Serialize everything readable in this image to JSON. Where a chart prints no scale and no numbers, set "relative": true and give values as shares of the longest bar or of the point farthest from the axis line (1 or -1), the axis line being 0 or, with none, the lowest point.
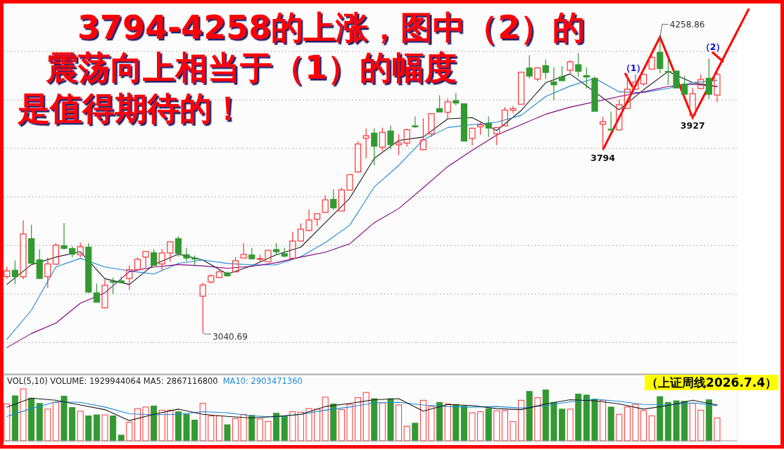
{
  "chart_data": [
    {
      "type": "candlestick",
      "title": "3794-4258的上涨，图中（2）的震荡向上相当于（1）的幅度是值得期待的！",
      "categories": [
        null,
        null,
        null,
        null,
        null,
        null,
        null,
        null,
        null,
        null,
        null,
        null,
        null,
        null,
        null,
        null,
        null,
        null,
        null,
        null,
        null,
        null,
        null,
        null,
        null,
        null,
        null,
        null,
        null,
        null,
        null,
        null,
        null,
        null,
        null,
        null,
        null,
        null,
        null,
        null,
        null,
        null,
        null,
        null,
        null,
        null,
        null,
        null,
        null,
        null,
        null,
        null,
        null,
        null,
        null,
        null,
        null,
        null,
        null,
        null,
        null,
        null,
        null,
        null,
        null,
        null,
        null,
        null,
        null,
        null,
        null,
        null,
        null,
        null,
        null,
        null,
        null,
        null,
        null,
        null,
        null,
        null,
        null,
        null,
        null,
        null,
        null,
        null
      ],
      "ohlc": [
        [
          3272,
          3312,
          3263,
          3295
        ],
        [
          3298,
          3338,
          3241,
          3271
        ],
        [
          3271,
          3503,
          3261,
          3447
        ],
        [
          3428,
          3485,
          3325,
          3327
        ],
        [
          3341,
          3384,
          3262,
          3264
        ],
        [
          3271,
          3350,
          3225,
          3324
        ],
        [
          3323,
          3410,
          3321,
          3401
        ],
        [
          3399,
          3492,
          3383,
          3388
        ],
        [
          3387,
          3398,
          3350,
          3364
        ],
        [
          3362,
          3412,
          3350,
          3395
        ],
        [
          3393,
          3410,
          3203,
          3208
        ],
        [
          3205,
          3243,
          3165,
          3166
        ],
        [
          3143,
          3260,
          3141,
          3236
        ],
        [
          3251,
          3268,
          3200,
          3249
        ],
        [
          3254,
          3272,
          3246,
          3247
        ],
        [
          3264,
          3318,
          3218,
          3300
        ],
        [
          3301,
          3352,
          3300,
          3343
        ],
        [
          3352,
          3376,
          3309,
          3375
        ],
        [
          3370,
          3384,
          3317,
          3318
        ],
        [
          3324,
          3384,
          3297,
          3369
        ],
        [
          3369,
          3416,
          3333,
          3415
        ],
        [
          3428,
          3437,
          3354,
          3367
        ],
        [
          3362,
          3391,
          3335,
          3348
        ],
        [
          3348,
          3358,
          3315,
          3344
        ],
        [
          3191,
          3246,
          3040.69,
          3237
        ],
        [
          3249,
          3281,
          3243,
          3275
        ],
        [
          3268,
          3304,
          3267,
          3291
        ],
        [
          3287,
          3292,
          3273,
          3275
        ],
        [
          3291,
          3352,
          3290,
          3337
        ],
        [
          3348,
          3410,
          3348,
          3363
        ],
        [
          3361,
          3390,
          3344,
          3345
        ],
        [
          3344,
          3362,
          3330,
          3346
        ],
        [
          3333,
          3380,
          3333,
          3380
        ],
        [
          3383,
          3410,
          3359,
          3374
        ],
        [
          3366,
          3390,
          3350,
          3356
        ],
        [
          3347,
          3456,
          3346,
          3418
        ],
        [
          3418,
          3491,
          3417,
          3467
        ],
        [
          3462,
          3549,
          3459,
          3505
        ],
        [
          3508,
          3532,
          3480,
          3531
        ],
        [
          3536,
          3607,
          3535,
          3588
        ],
        [
          3590,
          3632,
          3547,
          3555
        ],
        [
          3542,
          3638,
          3541,
          3629
        ],
        [
          3628,
          3692,
          3628,
          3692
        ],
        [
          3703,
          3829,
          3700,
          3818
        ],
        [
          3842,
          3882,
          3759,
          3852
        ],
        [
          3863,
          3882,
          3730,
          3809
        ],
        [
          3805,
          3886,
          3789,
          3866
        ],
        [
          3872,
          3895,
          3798,
          3815
        ],
        [
          3815,
          3858,
          3772,
          3823
        ],
        [
          3822,
          3881,
          3807,
          3877
        ],
        [
          3893,
          3932,
          3884,
          3889
        ],
        [
          3795,
          3924,
          3793,
          3835
        ],
        [
          3860,
          3944,
          3847,
          3943
        ],
        [
          3964,
          4019,
          3949,
          3950
        ],
        [
          3949,
          4005,
          3920,
          3992
        ],
        [
          3997,
          4028,
          3977,
          3987
        ],
        [
          3984,
          3984,
          3830,
          3830
        ],
        [
          3841,
          3886,
          3812,
          3883
        ],
        [
          3889,
          3905,
          3857,
          3897
        ],
        [
          3903,
          3932,
          3847,
          3884
        ],
        [
          3860,
          3887,
          3813,
          3886
        ],
        [
          3893,
          3970,
          3892,
          3958
        ],
        [
          3957,
          3975,
          3946,
          3964
        ],
        [
          3982,
          4115,
          3981,
          4114
        ],
        [
          4131,
          4184,
          4088,
          4098
        ],
        [
          4086,
          4135,
          4076,
          4132
        ],
        [
          4141,
          4166,
          4086,
          4113
        ],
        [
          4074,
          4134,
          3999,
          4062
        ],
        [
          4095,
          4139,
          4076,
          4079
        ],
        [
          4122,
          4163,
          4110,
          4157
        ],
        [
          4145,
          4193,
          4094,
          4118
        ],
        [
          4100,
          4134,
          4047,
          4094
        ],
        [
          4089,
          4097,
          3952,
          3953
        ],
        [
          3900,
          3930,
          3794,
          3910
        ],
        [
          3879,
          3951,
          3875,
          3876
        ],
        [
          3876,
          4001,
          3875,
          3980
        ],
        [
          3965,
          4107,
          3964,
          4044
        ],
        [
          4044,
          4105,
          4043,
          4073
        ],
        [
          4066,
          4106,
          4059,
          4105
        ],
        [
          4127,
          4201,
          4126,
          4175
        ],
        [
          4196,
          4258.86,
          4110,
          4129
        ],
        [
          4117,
          4167,
          4062,
          4115
        ],
        [
          4119,
          4120,
          4048,
          4049
        ],
        [
          4065,
          4100,
          4022,
          4023
        ],
        [
          3936,
          4049,
          3927,
          4025
        ],
        [
          4047,
          4105,
          4046,
          4084
        ],
        [
          4089,
          4170,
          4004,
          4023
        ],
        [
          4020,
          4132,
          3990,
          4105
        ]
      ],
      "colors": [
        "#ff3333",
        "#339933",
        "#ff3333",
        "#339933",
        "#339933",
        "#ff3333",
        "#ff3333",
        "#339933",
        "#339933",
        "#ff3333",
        "#339933",
        "#339933",
        "#ff3333",
        "#339933",
        "#339933",
        "#ff3333",
        "#ff3333",
        "#ff3333",
        "#339933",
        "#ff3333",
        "#ff3333",
        "#339933",
        "#339933",
        "#339933",
        "#ff3333",
        "#ff3333",
        "#ff3333",
        "#339933",
        "#ff3333",
        "#ff3333",
        "#339933",
        "#ff3333",
        "#ff3333",
        "#339933",
        "#339933",
        "#ff3333",
        "#ff3333",
        "#ff3333",
        "#ff3333",
        "#ff3333",
        "#339933",
        "#ff3333",
        "#ff3333",
        "#ff3333",
        "#ff3333",
        "#339933",
        "#ff3333",
        "#339933",
        "#ff3333",
        "#ff3333",
        "#339933",
        "#ff3333",
        "#ff3333",
        "#339933",
        "#ff3333",
        "#339933",
        "#339933",
        "#ff3333",
        "#ff3333",
        "#339933",
        "#ff3333",
        "#ff3333",
        "#ff3333",
        "#ff3333",
        "#339933",
        "#ff3333",
        "#339933",
        "#339933",
        "#339933",
        "#ff3333",
        "#339933",
        "#339933",
        "#339933",
        "#ff3333",
        "#339933",
        "#ff3333",
        "#ff3333",
        "#ff3333",
        "#ff3333",
        "#ff3333",
        "#339933",
        "#339933",
        "#339933",
        "#339933",
        "#ff3333",
        "#ff3333",
        "#339933",
        "#ff3333"
      ],
      "series": [
        {
          "type": "line",
          "color": "#1a1a1a",
          "values": [
            3240,
            null,
            null,
            3321,
            null,
            null,
            3352,
            null,
            null,
            3374,
            null,
            null,
            3263,
            null,
            null,
            3239,
            null,
            null,
            3321,
            null,
            null,
            3364,
            null,
            null,
            3340,
            null,
            null,
            3282,
            null,
            null,
            3316,
            null,
            null,
            3362,
            null,
            null,
            3393,
            null,
            null,
            3494,
            null,
            null,
            3595,
            null,
            null,
            3759,
            null,
            null,
            3833,
            null,
            null,
            3847,
            null,
            null,
            3922,
            null,
            null,
            3927,
            null,
            null,
            3874,
            null,
            null,
            3956,
            null,
            null,
            4071,
            null,
            null,
            4107,
            null,
            null,
            null,
            null,
            null,
            3959,
            null,
            null,
            4042,
            null,
            null,
            4117,
            null,
            null,
            4071,
            null,
            null,
            4055
          ]
        },
        {
          "type": "line",
          "color": "#1e88d8",
          "values": [
            3013,
            null,
            null,
            3133,
            null,
            null,
            3311,
            null,
            null,
            3347,
            null,
            null,
            3311,
            null,
            null,
            3295,
            null,
            null,
            3282,
            null,
            null,
            3326,
            null,
            null,
            3340,
            null,
            null,
            3326,
            null,
            null,
            3320,
            null,
            null,
            3320,
            null,
            null,
            3354,
            null,
            null,
            3412,
            null,
            null,
            3484,
            null,
            null,
            3641,
            null,
            null,
            3730,
            null,
            null,
            3835,
            null,
            null,
            3886,
            null,
            null,
            3898,
            null,
            null,
            3908,
            null,
            null,
            3936,
            null,
            null,
            4014,
            null,
            null,
            4057,
            null,
            null,
            4089,
            null,
            null,
            4033,
            null,
            null,
            4030,
            null,
            null,
            4047,
            null,
            null,
            4071,
            null,
            null,
            4081
          ]
        },
        {
          "type": "line",
          "color": "#800080",
          "values": [
            2979,
            null,
            null,
            3037,
            null,
            null,
            3080,
            null,
            null,
            3162,
            null,
            null,
            3205,
            null,
            null,
            3292,
            null,
            null,
            3311,
            null,
            null,
            3321,
            null,
            null,
            3316,
            null,
            null,
            3306,
            null,
            null,
            3314,
            null,
            null,
            3329,
            null,
            null,
            3352,
            null,
            null,
            3372,
            null,
            null,
            3407,
            null,
            null,
            3494,
            null,
            null,
            3552,
            null,
            null,
            3638,
            null,
            null,
            3725,
            null,
            null,
            3792,
            null,
            null,
            3855,
            null,
            null,
            3898,
            null,
            null,
            3941,
            null,
            null,
            3970,
            null,
            null,
            null,
            null,
            null,
            4014,
            null,
            null,
            4033,
            null,
            null,
            4055,
            null,
            null,
            4065,
            null,
            null,
            4055
          ]
        }
      ],
      "ylim": [
        2870,
        4400
      ],
      "yticks": [
        {
          "value": 3000,
          "label": null
        },
        {
          "value": 3200,
          "label": null
        },
        {
          "value": 3400,
          "label": null
        },
        {
          "value": 3600,
          "label": null
        },
        {
          "value": 3800,
          "label": null
        },
        {
          "value": 4000,
          "label": null
        },
        {
          "value": 4200,
          "label": null
        }
      ],
      "grid": "y",
      "annotations": [
        "4258.86",
        "3040.69",
        {
          "text": "3794",
          "y": 3794
        },
        {
          "text": "3927",
          "y": 3927
        },
        "（1）",
        "（2）"
      ]
    },
    {
      "type": "bar",
      "relative": true,
      "categories": [
        null,
        null,
        null,
        null,
        null,
        null,
        null,
        null,
        null,
        null,
        null,
        null,
        null,
        null,
        null,
        null,
        null,
        null,
        null,
        null,
        null,
        null,
        null,
        null,
        null,
        null,
        null,
        null,
        null,
        null,
        null,
        null,
        null,
        null,
        null,
        null,
        null,
        null,
        null,
        null,
        null,
        null,
        null,
        null,
        null,
        null,
        null,
        null,
        null,
        null,
        null,
        null,
        null,
        null,
        null,
        null,
        null,
        null,
        null,
        null,
        null,
        null,
        null,
        null,
        null,
        null,
        null,
        null,
        null,
        null,
        null,
        null,
        null,
        null,
        null,
        null,
        null,
        null,
        null,
        null,
        null,
        null,
        null,
        null,
        null,
        null,
        null,
        null
      ],
      "series": [
        {
          "type": "bar",
          "values": [
            0.71,
            0.865,
            1.0,
            0.82,
            0.72,
            0.61,
            0.74,
            0.86,
            0.64,
            0.57,
            0.48,
            0.5,
            0.5,
            0.48,
            0.11,
            0.36,
            0.62,
            0.65,
            0.67,
            0.59,
            0.59,
            0.56,
            0.51,
            0.4,
            0.72,
            0.48,
            0.48,
            0.31,
            0.43,
            0.51,
            0.49,
            0.42,
            0.37,
            0.53,
            0.47,
            0.56,
            0.55,
            0.62,
            0.61,
            0.84,
            0.71,
            0.6,
            0.7,
            0.83,
            0.93,
            0.81,
            0.73,
            0.81,
            0.69,
            0.28,
            0.34,
            0.78,
            0.66,
            0.74,
            0.71,
            0.7,
            0.67,
            0.54,
            0.56,
            0.62,
            0.58,
            0.58,
            0.37,
            0.78,
            0.95,
            0.83,
            0.98,
            0.74,
            0.61,
            0.61,
            0.9,
            0.88,
            0.8,
            0.78,
            0.65,
            0.51,
            0.65,
            0.7,
            0.58,
            0.48,
            0.85,
            0.74,
            0.77,
            0.76,
            0.72,
            0.59,
            0.79,
            0.44
          ],
          "colors": [
            "#ff3333",
            "#339933",
            "#ff3333",
            "#339933",
            "#339933",
            "#ff3333",
            "#ff3333",
            "#339933",
            "#339933",
            "#ff3333",
            "#339933",
            "#339933",
            "#ff3333",
            "#339933",
            "#339933",
            "#ff3333",
            "#ff3333",
            "#ff3333",
            "#339933",
            "#ff3333",
            "#ff3333",
            "#339933",
            "#339933",
            "#339933",
            "#ff3333",
            "#ff3333",
            "#ff3333",
            "#339933",
            "#ff3333",
            "#ff3333",
            "#339933",
            "#ff3333",
            "#ff3333",
            "#339933",
            "#339933",
            "#ff3333",
            "#ff3333",
            "#ff3333",
            "#ff3333",
            "#ff3333",
            "#339933",
            "#ff3333",
            "#ff3333",
            "#ff3333",
            "#ff3333",
            "#339933",
            "#ff3333",
            "#339933",
            "#ff3333",
            "#ff3333",
            "#339933",
            "#ff3333",
            "#ff3333",
            "#339933",
            "#ff3333",
            "#339933",
            "#339933",
            "#ff3333",
            "#ff3333",
            "#339933",
            "#ff3333",
            "#ff3333",
            "#ff3333",
            "#ff3333",
            "#339933",
            "#ff3333",
            "#339933",
            "#339933",
            "#339933",
            "#ff3333",
            "#339933",
            "#339933",
            "#339933",
            "#ff3333",
            "#339933",
            "#ff3333",
            "#ff3333",
            "#ff3333",
            "#ff3333",
            "#ff3333",
            "#339933",
            "#339933",
            "#339933",
            "#339933",
            "#ff3333",
            "#ff3333",
            "#339933",
            "#ff3333"
          ]
        },
        {
          "type": "line",
          "color": "#1a1a1a",
          "values": [
            0.65,
            null,
            null,
            0.82,
            null,
            null,
            0.78,
            null,
            null,
            0.69,
            null,
            null,
            0.6,
            null,
            null,
            0.39,
            null,
            null,
            0.51,
            null,
            null,
            0.61,
            null,
            null,
            0.51,
            null,
            null,
            0.47,
            null,
            null,
            0.44,
            null,
            null,
            0.47,
            null,
            null,
            0.51,
            null,
            null,
            0.66,
            null,
            null,
            0.72,
            null,
            null,
            0.79,
            null,
            null,
            0.81,
            null,
            null,
            0.57,
            null,
            null,
            0.7,
            null,
            null,
            0.68,
            null,
            null,
            0.62,
            null,
            null,
            0.6,
            null,
            null,
            0.71,
            null,
            null,
            0.79,
            null,
            null,
            0.77,
            null,
            null,
            0.71,
            null,
            null,
            0.61,
            null,
            null,
            0.68,
            null,
            null,
            0.78,
            null,
            null,
            0.69
          ]
        },
        {
          "type": "line",
          "color": "#1e88d8",
          "values": [
            0.47,
            null,
            null,
            0.62,
            null,
            null,
            0.75,
            null,
            null,
            0.74,
            null,
            null,
            0.65,
            null,
            null,
            0.52,
            null,
            null,
            0.5,
            null,
            null,
            0.51,
            null,
            null,
            0.56,
            null,
            null,
            0.54,
            null,
            null,
            0.48,
            null,
            null,
            0.46,
            null,
            null,
            0.51,
            null,
            null,
            0.59,
            null,
            null,
            0.65,
            null,
            null,
            0.73,
            null,
            null,
            0.74,
            null,
            null,
            0.69,
            null,
            null,
            0.66,
            null,
            null,
            0.65,
            null,
            null,
            0.66,
            null,
            null,
            0.63,
            null,
            null,
            0.68,
            null,
            null,
            0.75,
            null,
            null,
            0.8,
            null,
            null,
            0.76,
            null,
            null,
            0.7,
            null,
            null,
            0.69,
            null,
            null,
            0.73,
            null,
            null,
            0.68
          ]
        }
      ],
      "annotations": [
        "VOL(5,10) VOLUME: 1929944064 MA5: 2867116800",
        "MA10: 2903471360",
        "（上证周线2026.7.4）"
      ]
    }
  ]
}
